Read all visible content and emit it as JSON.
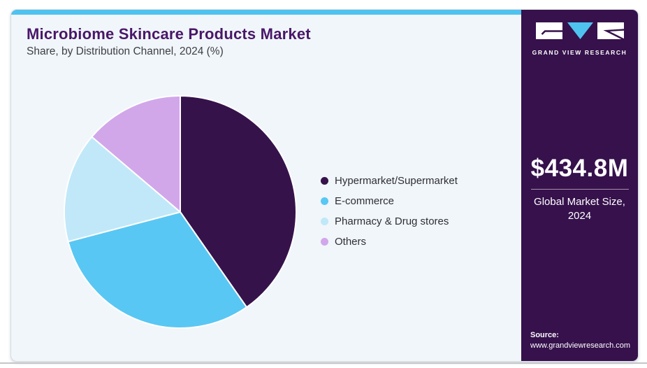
{
  "header": {
    "title": "Microbiome Skincare Products Market",
    "subtitle": "Share, by Distribution Channel, 2024 (%)"
  },
  "chart_data": {
    "type": "pie",
    "title": "Microbiome Skincare Products Market Share, by Distribution Channel, 2024 (%)",
    "labels": [
      "Hypermarket/Supermarket",
      "E-commerce",
      "Pharmacy & Drug stores",
      "Others"
    ],
    "values": [
      40.3,
      30.6,
      15.3,
      13.8
    ],
    "unit": "%",
    "colors": [
      "#36124B",
      "#59C7F3",
      "#C0E8F8",
      "#D1A7EA"
    ],
    "start_angle_deg": 0,
    "direction": "clockwise",
    "legend_position": "right",
    "slice_separator_color": "#FFFFFF"
  },
  "sidebar": {
    "background_color": "#36114C",
    "brand": "GRAND VIEW RESEARCH",
    "market_size": {
      "value": "$434.8M",
      "label_line1": "Global Market Size,",
      "label_line2": "2024"
    },
    "source": {
      "label": "Source:",
      "url_text": "www.grandviewresearch.com"
    }
  },
  "theme": {
    "accent_blue": "#4FC3EF",
    "card_background": "#F0F6FA",
    "title_color": "#4A1768",
    "dark_purple": "#36114C"
  }
}
